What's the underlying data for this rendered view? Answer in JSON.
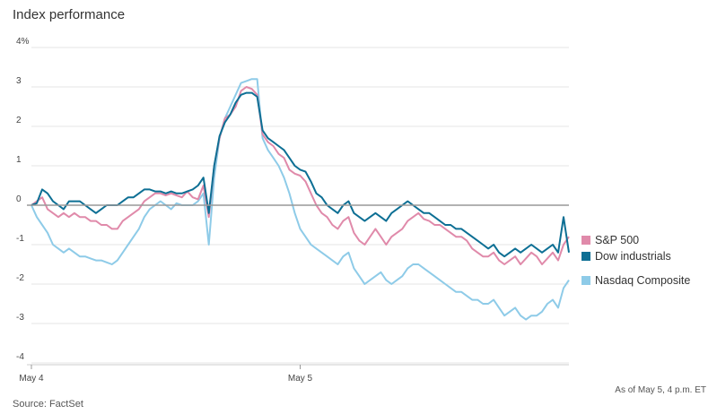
{
  "header": {
    "title": "Index performance"
  },
  "footer": {
    "source": "Source: FactSet",
    "as_of": "As of May 5, 4 p.m. ET"
  },
  "colors": {
    "sp500": "#e08aaa",
    "dow": "#0d6f94",
    "nasdaq": "#8ecbe8",
    "gridline": "#e6e6e6",
    "zero_line": "#999999"
  },
  "chart_data": {
    "type": "line",
    "title": "Index performance",
    "ylabel": "",
    "xlabel": "",
    "ylim": [
      -4,
      4
    ],
    "y_ticks": [
      "4%",
      "3",
      "2",
      "1",
      "0",
      "-1",
      "-2",
      "-3",
      "-4"
    ],
    "x_ticks": [
      "May 4",
      "May 5"
    ],
    "grid": true,
    "legend_position": "right",
    "x": [
      0,
      2,
      4,
      6,
      8,
      10,
      12,
      14,
      16,
      18,
      20,
      22,
      24,
      26,
      28,
      30,
      32,
      34,
      36,
      38,
      40,
      42,
      44,
      46,
      48,
      50,
      52,
      54,
      56,
      58,
      60,
      62,
      64,
      66,
      68,
      70,
      72,
      74,
      76,
      78,
      80,
      82,
      84,
      86,
      88,
      90,
      92,
      94,
      96,
      98,
      100,
      102,
      104,
      106,
      108,
      110,
      112,
      114,
      116,
      118,
      120,
      122,
      124,
      126,
      128,
      130,
      132,
      134,
      136,
      138,
      140,
      142,
      144,
      146,
      148,
      150,
      152,
      154,
      156,
      158,
      160,
      162,
      164,
      166,
      168,
      170,
      172,
      174,
      176,
      178,
      180,
      182,
      184,
      186,
      188,
      190,
      192,
      194,
      196,
      198,
      200
    ],
    "series": [
      {
        "name": "S&P 500",
        "values": [
          0,
          0.1,
          0.2,
          -0.1,
          -0.2,
          -0.3,
          -0.2,
          -0.3,
          -0.2,
          -0.3,
          -0.3,
          -0.4,
          -0.4,
          -0.5,
          -0.5,
          -0.6,
          -0.6,
          -0.4,
          -0.3,
          -0.2,
          -0.1,
          0.1,
          0.2,
          0.3,
          0.3,
          0.25,
          0.3,
          0.25,
          0.2,
          0.35,
          0.2,
          0.15,
          0.5,
          -0.3,
          1,
          1.7,
          2.2,
          2.3,
          2.5,
          2.9,
          3,
          2.95,
          2.8,
          1.8,
          1.6,
          1.5,
          1.3,
          1.2,
          0.9,
          0.8,
          0.75,
          0.6,
          0.3,
          0,
          -0.2,
          -0.3,
          -0.5,
          -0.6,
          -0.4,
          -0.3,
          -0.7,
          -0.9,
          -1,
          -0.8,
          -0.6,
          -0.8,
          -1,
          -0.8,
          -0.7,
          -0.6,
          -0.4,
          -0.3,
          -0.2,
          -0.35,
          -0.4,
          -0.5,
          -0.5,
          -0.6,
          -0.7,
          -0.8,
          -0.8,
          -0.9,
          -1.1,
          -1.2,
          -1.3,
          -1.3,
          -1.2,
          -1.4,
          -1.5,
          -1.4,
          -1.3,
          -1.5,
          -1.35,
          -1.2,
          -1.3,
          -1.5,
          -1.35,
          -1.2,
          -1.4,
          -1,
          -0.8
        ]
      },
      {
        "name": "Dow industrials",
        "values": [
          0,
          0.05,
          0.4,
          0.3,
          0.1,
          0,
          -0.1,
          0.1,
          0.1,
          0.1,
          0,
          -0.1,
          -0.2,
          -0.1,
          0,
          0,
          0,
          0.1,
          0.2,
          0.2,
          0.3,
          0.4,
          0.4,
          0.35,
          0.35,
          0.3,
          0.35,
          0.3,
          0.3,
          0.35,
          0.4,
          0.5,
          0.7,
          -0.2,
          1,
          1.75,
          2.1,
          2.3,
          2.6,
          2.8,
          2.85,
          2.85,
          2.75,
          1.9,
          1.7,
          1.6,
          1.5,
          1.4,
          1.2,
          1,
          0.9,
          0.85,
          0.6,
          0.3,
          0.2,
          0,
          -0.1,
          -0.2,
          0,
          0.1,
          -0.2,
          -0.3,
          -0.4,
          -0.3,
          -0.2,
          -0.3,
          -0.4,
          -0.2,
          -0.1,
          0,
          0.1,
          0,
          -0.1,
          -0.2,
          -0.2,
          -0.3,
          -0.4,
          -0.5,
          -0.5,
          -0.6,
          -0.6,
          -0.7,
          -0.8,
          -0.9,
          -1,
          -1.1,
          -1,
          -1.2,
          -1.3,
          -1.2,
          -1.1,
          -1.2,
          -1.1,
          -1,
          -1.1,
          -1.2,
          -1.1,
          -1,
          -1.2,
          -0.3,
          -1.2
        ]
      },
      {
        "name": "Nasdaq Composite",
        "values": [
          0,
          -0.3,
          -0.5,
          -0.7,
          -1,
          -1.1,
          -1.2,
          -1.1,
          -1.2,
          -1.3,
          -1.3,
          -1.35,
          -1.4,
          -1.4,
          -1.45,
          -1.5,
          -1.4,
          -1.2,
          -1,
          -0.8,
          -0.6,
          -0.3,
          -0.1,
          0,
          0.1,
          0,
          -0.1,
          0.05,
          0,
          0,
          0,
          0.1,
          0.3,
          -1,
          0.7,
          1.7,
          2.2,
          2.5,
          2.8,
          3.1,
          3.15,
          3.2,
          3.2,
          1.7,
          1.4,
          1.2,
          1,
          0.7,
          0.3,
          -0.2,
          -0.6,
          -0.8,
          -1,
          -1.1,
          -1.2,
          -1.3,
          -1.4,
          -1.5,
          -1.3,
          -1.2,
          -1.6,
          -1.8,
          -2,
          -1.9,
          -1.8,
          -1.7,
          -1.9,
          -2,
          -1.9,
          -1.8,
          -1.6,
          -1.5,
          -1.5,
          -1.6,
          -1.7,
          -1.8,
          -1.9,
          -2,
          -2.1,
          -2.2,
          -2.2,
          -2.3,
          -2.4,
          -2.4,
          -2.5,
          -2.5,
          -2.4,
          -2.6,
          -2.8,
          -2.7,
          -2.6,
          -2.8,
          -2.9,
          -2.8,
          -2.8,
          -2.7,
          -2.5,
          -2.4,
          -2.6,
          -2.1,
          -1.9
        ]
      }
    ]
  }
}
